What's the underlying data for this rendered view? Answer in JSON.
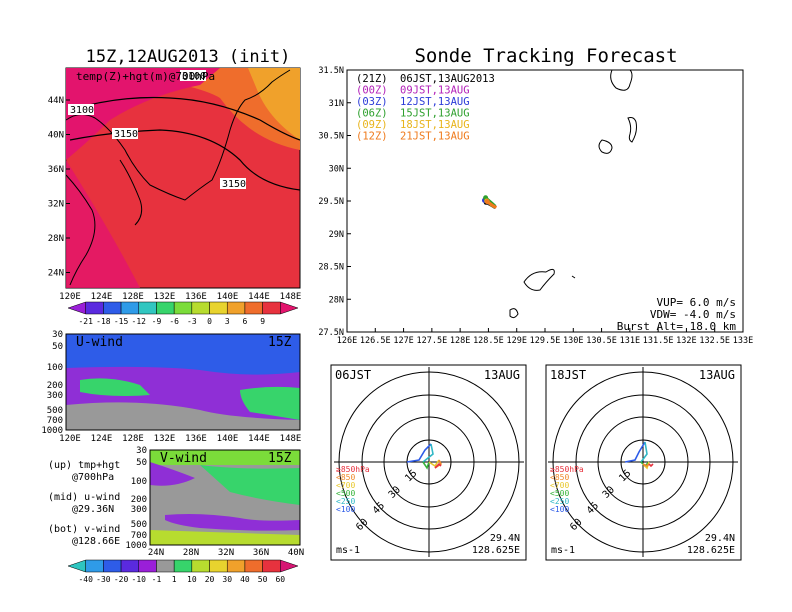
{
  "left": {
    "title": "15Z,12AUG2013 (init)",
    "map": {
      "label": "temp(Z)+hgt(m)@700hPa",
      "contour_labels": [
        "3100",
        "3100",
        "3150",
        "3150"
      ],
      "lat_ticks": [
        "44N",
        "40N",
        "36N",
        "32N",
        "28N",
        "24N"
      ],
      "lon_ticks": [
        "120E",
        "124E",
        "128E",
        "132E",
        "136E",
        "140E",
        "144E",
        "148E"
      ]
    },
    "temp_colorbar": {
      "labels": [
        "-21",
        "-18",
        "-15",
        "-12",
        "-9",
        "-6",
        "-3",
        "0",
        "3",
        "6",
        "9"
      ],
      "colors": [
        "#9a1fd8",
        "#5a2adf",
        "#2e5ce8",
        "#2f9be8",
        "#31c6c0",
        "#37d46b",
        "#7bdc3a",
        "#b7dc2f",
        "#e8d32e",
        "#f0a12b",
        "#ef6d2c",
        "#e7323e",
        "#e3146d"
      ]
    },
    "u_wind": {
      "label": "U-wind",
      "time": "15Z",
      "p_ticks": [
        "30",
        "50",
        "100",
        "200",
        "300",
        "500",
        "700",
        "1000"
      ],
      "lon_ticks": [
        "120E",
        "124E",
        "128E",
        "132E",
        "136E",
        "140E",
        "144E",
        "148E"
      ]
    },
    "v_wind": {
      "label": "V-wind",
      "time": "15Z",
      "p_ticks": [
        "30",
        "50",
        "100",
        "200",
        "300",
        "500",
        "700",
        "1000"
      ],
      "lat_ticks": [
        "24N",
        "28N",
        "32N",
        "36N",
        "40N"
      ]
    },
    "legend_notes": [
      {
        "line1": "(up) tmp+hgt",
        "line2": "@700hPa"
      },
      {
        "line1": "(mid) u-wind",
        "line2": "@29.36N"
      },
      {
        "line1": "(bot) v-wind",
        "line2": "@128.66E"
      }
    ],
    "wind_colorbar": {
      "labels": [
        "-40",
        "-30",
        "-20",
        "-10",
        "-1",
        "1",
        "10",
        "20",
        "30",
        "40",
        "50",
        "60"
      ],
      "colors": [
        "#2ec5c0",
        "#2f9be8",
        "#2e5ce8",
        "#5a2adf",
        "#9a1fd8",
        "#999999",
        "#37d46b",
        "#b7dc2f",
        "#e8d32e",
        "#f0a12b",
        "#ef6d2c",
        "#e7323e",
        "#d61673"
      ]
    }
  },
  "right": {
    "title": "Sonde Tracking Forecast",
    "map": {
      "lat_ticks": [
        "31.5N",
        "31N",
        "30.5N",
        "30N",
        "29.5N",
        "29N",
        "28.5N",
        "28N",
        "27.5N"
      ],
      "lon_ticks": [
        "126E",
        "126.5E",
        "127E",
        "127.5E",
        "128E",
        "128.5E",
        "129E",
        "129.5E",
        "130E",
        "130.5E",
        "131E",
        "131.5E",
        "132E",
        "132.5E",
        "133E"
      ],
      "legend": [
        {
          "code": "(21Z)",
          "text": "06JST,13AUG2013",
          "color": "#000000"
        },
        {
          "code": "(00Z)",
          "text": "09JST,13AUG",
          "color": "#b21fb8"
        },
        {
          "code": "(03Z)",
          "text": "12JST,13AUG",
          "color": "#2b3bd8"
        },
        {
          "code": "(06Z)",
          "text": "15JST,13AUG",
          "color": "#2ea02e"
        },
        {
          "code": "(09Z)",
          "text": "18JST,13AUG",
          "color": "#e8b41c"
        },
        {
          "code": "(12Z)",
          "text": "21JST,13AUG",
          "color": "#ef7a1c"
        }
      ],
      "params": [
        "VUP= 6.0 m/s",
        "VDW= -4.0 m/s",
        "Burst Alt= 18.0 km"
      ]
    },
    "polar_left": {
      "time": "06JST",
      "date": "13AUG",
      "lat": "29.4N",
      "lon": "128.625E",
      "unit": "ms-1",
      "ring_labels": [
        "15",
        "30",
        "45",
        "60"
      ],
      "levels": [
        {
          "t": "≥850hPa",
          "c": "#e7323e"
        },
        {
          "t": "<850",
          "c": "#ef8a2c"
        },
        {
          "t": "<700",
          "c": "#e8c82e"
        },
        {
          "t": "<500",
          "c": "#37b43b"
        },
        {
          "t": "<250",
          "c": "#31b8c6"
        },
        {
          "t": "<100",
          "c": "#2e5ce8"
        }
      ]
    },
    "polar_right": {
      "time": "18JST",
      "date": "13AUG",
      "lat": "29.4N",
      "lon": "128.625E",
      "unit": "ms-1",
      "ring_labels": [
        "15",
        "30",
        "45",
        "60"
      ],
      "levels": [
        {
          "t": "≥850hPa",
          "c": "#e7323e"
        },
        {
          "t": "<850",
          "c": "#ef8a2c"
        },
        {
          "t": "<700",
          "c": "#e8c82e"
        },
        {
          "t": "<500",
          "c": "#37b43b"
        },
        {
          "t": "<250",
          "c": "#31b8c6"
        },
        {
          "t": "<100",
          "c": "#2e5ce8"
        }
      ]
    }
  },
  "chart_data": [
    {
      "type": "heatmap",
      "title": "15Z,12AUG2013 (init)",
      "subtitle": "temp(Z)+hgt(m)@700hPa",
      "x": "longitude 120E–148E",
      "y": "latitude 24N–44N",
      "contours": [
        3100,
        3150
      ],
      "colorbar": [
        -21,
        -18,
        -15,
        -12,
        -9,
        -6,
        -3,
        0,
        3,
        6,
        9
      ]
    },
    {
      "type": "heatmap",
      "title": "U-wind",
      "xlim": [
        "120E",
        "148E"
      ],
      "ylim": [
        1000,
        30
      ],
      "colorbar": [
        -40,
        -30,
        -20,
        -10,
        -1,
        1,
        10,
        20,
        30,
        40,
        50,
        60
      ]
    },
    {
      "type": "heatmap",
      "title": "V-wind",
      "xlim": [
        "24N",
        "40N"
      ],
      "ylim": [
        1000,
        30
      ]
    },
    {
      "type": "line",
      "title": "Sonde Tracking Forecast",
      "xlim": [
        126,
        133
      ],
      "ylim": [
        27.5,
        31.5
      ],
      "series": [
        {
          "name": "06JST,13AUG2013",
          "points": [
            [
              128.46,
              29.48
            ],
            [
              128.58,
              29.42
            ],
            [
              128.62,
              29.4
            ]
          ]
        },
        {
          "name": "09JST,13AUG",
          "points": [
            [
              128.44,
              29.52
            ],
            [
              128.56,
              29.44
            ],
            [
              128.63,
              29.41
            ]
          ]
        },
        {
          "name": "12JST,13AUG",
          "points": [
            [
              128.43,
              29.51
            ],
            [
              128.54,
              29.45
            ],
            [
              128.6,
              29.42
            ]
          ]
        },
        {
          "name": "15JST,13AUG",
          "points": [
            [
              128.45,
              29.55
            ],
            [
              128.57,
              29.46
            ],
            [
              128.62,
              29.42
            ]
          ]
        },
        {
          "name": "18JST,13AUG",
          "points": [
            [
              128.47,
              29.5
            ],
            [
              128.55,
              29.44
            ],
            [
              128.61,
              29.41
            ]
          ]
        },
        {
          "name": "21JST,13AUG",
          "points": [
            [
              128.48,
              29.49
            ],
            [
              128.58,
              29.43
            ],
            [
              128.64,
              29.4
            ]
          ]
        }
      ]
    }
  ]
}
